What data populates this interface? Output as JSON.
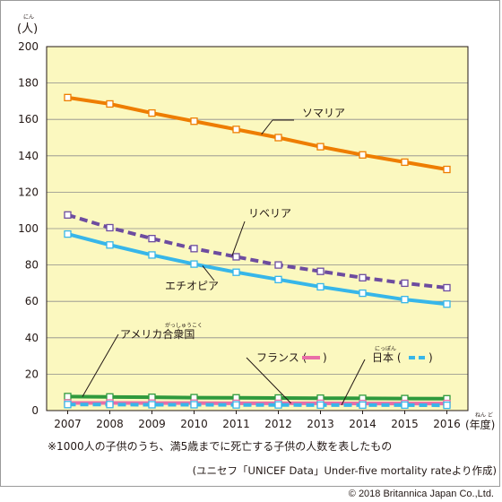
{
  "chart_data": {
    "type": "line",
    "yunit": "(人)",
    "yunit_ruby": "にん",
    "xunit": "(年度)",
    "xunit_ruby": "ねん ど",
    "categories": [
      "2007",
      "2008",
      "2009",
      "2010",
      "2011",
      "2012",
      "2013",
      "2014",
      "2015",
      "2016"
    ],
    "ylim": [
      0,
      200
    ],
    "yticks": [
      0,
      20,
      40,
      60,
      80,
      100,
      120,
      140,
      160,
      180,
      200
    ],
    "grid": true,
    "series": [
      {
        "name": "ソマリア",
        "color": "#ee7d00",
        "dashed": false,
        "values": [
          172,
          168.5,
          163.5,
          159,
          154.5,
          150,
          145,
          140.5,
          136.5,
          132.5
        ]
      },
      {
        "name": "リベリア",
        "color": "#6d4c9f",
        "dashed": true,
        "values": [
          107.5,
          100.5,
          94.5,
          89,
          84.5,
          80,
          76.5,
          73,
          70,
          67.5
        ]
      },
      {
        "name": "エチオピア",
        "color": "#37b6e9",
        "dashed": false,
        "values": [
          97,
          91,
          85.5,
          80.5,
          76,
          72,
          68,
          64.5,
          61,
          58.5
        ]
      },
      {
        "name": "アメリカ合衆国",
        "ruby": "がっしゅうこく",
        "color": "#2f9a3d",
        "dashed": false,
        "values": [
          7.7,
          7.5,
          7.3,
          7.1,
          7.0,
          6.9,
          6.8,
          6.7,
          6.6,
          6.5
        ]
      },
      {
        "name": "フランス",
        "color": "#e96ea7",
        "dashed": false,
        "values": [
          4.2,
          4.2,
          4.1,
          4.1,
          4.0,
          4.0,
          4.0,
          3.9,
          3.9,
          3.9
        ]
      },
      {
        "name": "日本",
        "ruby": "にっぽん",
        "color": "#37b6e9",
        "dashed": true,
        "values": [
          3.3,
          3.3,
          3.2,
          3.2,
          3.1,
          3.1,
          3.0,
          3.0,
          3.0,
          2.9
        ]
      }
    ],
    "note": "※1000人の子供のうち、満5歳までに死亡する子供の人数を表したもの",
    "source": "(ユニセフ「UNICEF Data」Under-five mortality rateより作成)"
  },
  "copyright": "© 2018 Britannica Japan Co.,Ltd."
}
